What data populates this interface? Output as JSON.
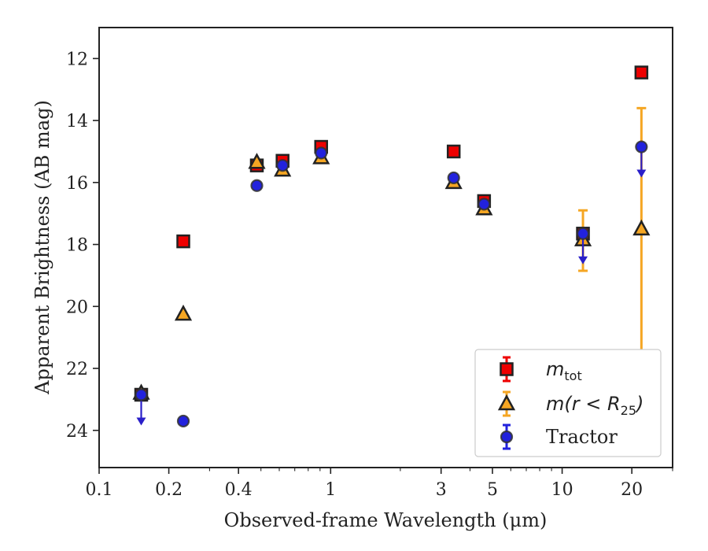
{
  "chart_data": {
    "type": "scatter",
    "title": "",
    "xlabel": "Observed-frame Wavelength (μm)",
    "ylabel": "Apparent Brightness (AB mag)",
    "xscale": "log",
    "xlim": [
      0.1,
      30
    ],
    "ylim": [
      25.2,
      11
    ],
    "y_inverted": true,
    "grid": false,
    "legend_position": "lower-right",
    "xticks": [
      0.1,
      0.2,
      0.4,
      1,
      3,
      5,
      10,
      20
    ],
    "xtick_labels": [
      "0.1",
      "0.2",
      "0.4",
      "1",
      "3",
      "5",
      "10",
      "20"
    ],
    "yticks": [
      12,
      14,
      16,
      18,
      20,
      22,
      24
    ],
    "ytick_labels": [
      "12",
      "14",
      "16",
      "18",
      "20",
      "22",
      "24"
    ],
    "colors": {
      "m_tot": "#ee0000",
      "m_r25": "#f5a623",
      "tractor": "#2222dd",
      "upper_limit_arrow": "#2a1fc9",
      "marker_edge": "#222222"
    },
    "series": [
      {
        "name": "m_tot",
        "legend_label": {
          "base": "m",
          "sub": "tot"
        },
        "marker": "square",
        "points": [
          {
            "x": 0.152,
            "y": 22.85
          },
          {
            "x": 0.231,
            "y": 17.9
          },
          {
            "x": 0.48,
            "y": 15.45
          },
          {
            "x": 0.62,
            "y": 15.3
          },
          {
            "x": 0.91,
            "y": 14.85
          },
          {
            "x": 3.4,
            "y": 15.0
          },
          {
            "x": 4.6,
            "y": 16.6
          },
          {
            "x": 12.3,
            "y": 17.65
          },
          {
            "x": 22.0,
            "y": 12.45
          }
        ]
      },
      {
        "name": "m(r<R25)",
        "legend_label": {
          "text": "m(r < R",
          "sub": "25",
          "close": ")"
        },
        "marker": "triangle",
        "points": [
          {
            "x": 0.152,
            "y": 22.8
          },
          {
            "x": 0.231,
            "y": 20.25
          },
          {
            "x": 0.48,
            "y": 15.35
          },
          {
            "x": 0.62,
            "y": 15.6
          },
          {
            "x": 0.91,
            "y": 15.2
          },
          {
            "x": 3.4,
            "y": 16.0
          },
          {
            "x": 4.6,
            "y": 16.85
          },
          {
            "x": 12.3,
            "y": 17.85,
            "yerr_low": 16.9,
            "yerr_high": 18.85
          },
          {
            "x": 22.0,
            "y": 17.5,
            "yerr_low": 13.6,
            "yerr_high": 21.5
          }
        ]
      },
      {
        "name": "Tractor",
        "legend_label": {
          "text": "Tractor"
        },
        "marker": "circle",
        "points": [
          {
            "x": 0.152,
            "y": 22.85,
            "upper_limit": true
          },
          {
            "x": 0.231,
            "y": 23.7
          },
          {
            "x": 0.48,
            "y": 16.1
          },
          {
            "x": 0.62,
            "y": 15.45
          },
          {
            "x": 0.91,
            "y": 15.05
          },
          {
            "x": 3.4,
            "y": 15.85
          },
          {
            "x": 4.6,
            "y": 16.7
          },
          {
            "x": 12.3,
            "y": 17.65,
            "upper_limit": true
          },
          {
            "x": 22.0,
            "y": 14.85,
            "upper_limit": true
          }
        ]
      }
    ]
  }
}
